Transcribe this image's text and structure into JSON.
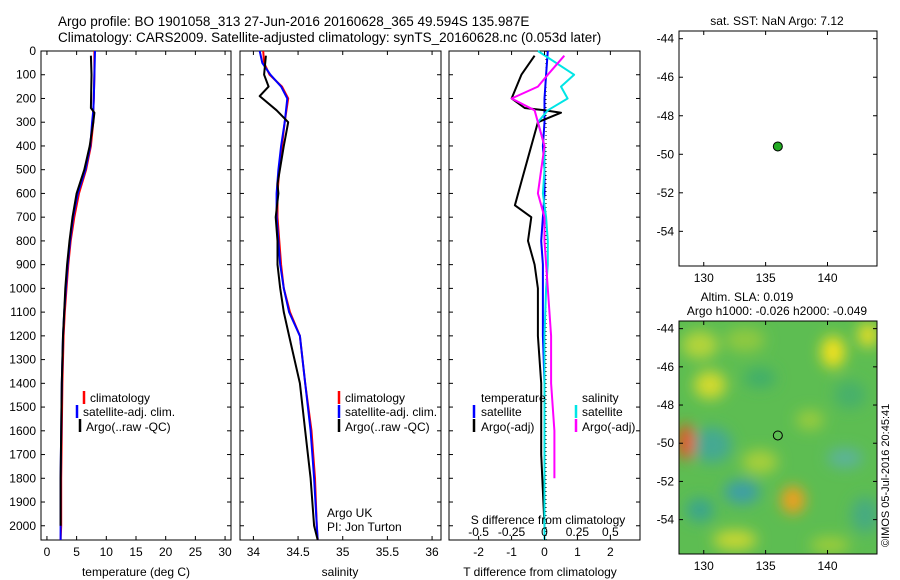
{
  "header": {
    "line1": "Argo profile: BO 1901058_313 27-Jun-2016 20160628_365 49.594S 135.987E",
    "line2": "Climatology: CARS2009. Satellite-adjusted climatology: synTS_20160628.nc (0.053d later)"
  },
  "credit": "©IMOS 05-Jul-2016 20:45:41",
  "colors": {
    "clim": "#ff0000",
    "sat": "#0000ff",
    "argo": "#000000",
    "sat_s": "#00e5e5",
    "argo_s": "#ff00ff",
    "float": "#22aa22"
  },
  "chart_data": [
    {
      "id": "temperature",
      "type": "line",
      "xlabel": "temperature (deg C)",
      "xlim": [
        -1,
        31
      ],
      "xticks": [
        0,
        5,
        10,
        15,
        20,
        25,
        30
      ],
      "ylim": [
        0,
        2060
      ],
      "yticks": [
        0,
        100,
        200,
        300,
        400,
        500,
        600,
        700,
        800,
        900,
        1000,
        1100,
        1200,
        1300,
        1400,
        1500,
        1600,
        1700,
        1800,
        1900,
        2000
      ],
      "yreversed": true,
      "legend": [
        "climatology",
        "satellite-adj. clim.",
        "Argo(..raw -QC)"
      ],
      "series": [
        {
          "name": "climatology",
          "color": "#ff0000",
          "x": [
            8.0,
            8.0,
            7.9,
            7.8,
            7.8,
            7.4,
            6.6,
            5.4,
            4.6,
            4.0,
            3.6,
            3.3,
            3.0,
            2.8,
            2.6,
            2.5,
            2.4,
            2.4,
            2.3
          ],
          "y": [
            0,
            100,
            200,
            250,
            300,
            400,
            500,
            600,
            700,
            800,
            900,
            1000,
            1100,
            1200,
            1400,
            1600,
            1800,
            2000,
            2060
          ]
        },
        {
          "name": "satellite-adj. clim.",
          "color": "#0000ff",
          "x": [
            8.1,
            8.0,
            7.9,
            7.8,
            7.6,
            7.3,
            6.5,
            5.2,
            4.4,
            3.9,
            3.5,
            3.2,
            2.9,
            2.7,
            2.5,
            2.4,
            2.3,
            2.3,
            2.3
          ],
          "y": [
            0,
            100,
            200,
            250,
            300,
            400,
            500,
            600,
            700,
            800,
            900,
            1000,
            1100,
            1200,
            1400,
            1600,
            1800,
            2000,
            2060
          ]
        },
        {
          "name": "Argo(..raw -QC)",
          "color": "#000000",
          "x": [
            7.4,
            7.5,
            7.4,
            8.0,
            7.8,
            7.2,
            6.3,
            5.0,
            4.3,
            3.8,
            3.4,
            3.1,
            2.9,
            2.7,
            2.5,
            2.4,
            2.3,
            2.3
          ],
          "y": [
            20,
            100,
            240,
            260,
            300,
            400,
            500,
            600,
            700,
            800,
            900,
            1000,
            1100,
            1200,
            1400,
            1600,
            1800,
            2000
          ]
        }
      ]
    },
    {
      "id": "salinity",
      "type": "line",
      "xlabel": "salinity",
      "xlim": [
        33.85,
        36.1
      ],
      "xticks": [
        34,
        34.5,
        35,
        35.5,
        36
      ],
      "ylim": [
        0,
        2060
      ],
      "yreversed": true,
      "legend": [
        "climatology",
        "satellite-adj. clim.",
        "Argo(..raw -QC)"
      ],
      "annotation": [
        "Argo UK",
        "PI: Jon Turton"
      ],
      "series": [
        {
          "name": "climatology",
          "color": "#ff0000",
          "x": [
            34.11,
            34.12,
            34.18,
            34.32,
            34.39,
            34.35,
            34.32,
            34.29,
            34.27,
            34.27,
            34.29,
            34.31,
            34.34,
            34.41,
            34.52,
            34.58,
            34.65,
            34.69,
            34.71,
            34.72
          ],
          "y": [
            0,
            50,
            100,
            150,
            200,
            300,
            400,
            500,
            600,
            700,
            800,
            900,
            1000,
            1100,
            1200,
            1400,
            1600,
            1800,
            2000,
            2060
          ]
        },
        {
          "name": "satellite-adj. clim.",
          "color": "#0000ff",
          "x": [
            34.07,
            34.1,
            34.19,
            34.31,
            34.38,
            34.35,
            34.31,
            34.28,
            34.26,
            34.26,
            34.28,
            34.3,
            34.34,
            34.4,
            34.52,
            34.58,
            34.64,
            34.68,
            34.71,
            34.72
          ],
          "y": [
            0,
            50,
            100,
            150,
            200,
            300,
            400,
            500,
            600,
            700,
            800,
            900,
            1000,
            1100,
            1200,
            1400,
            1600,
            1800,
            2000,
            2060
          ]
        },
        {
          "name": "Argo(..raw -QC)",
          "color": "#000000",
          "x": [
            34.14,
            34.12,
            34.17,
            34.07,
            34.26,
            34.39,
            34.34,
            34.27,
            34.28,
            34.25,
            34.27,
            34.27,
            34.3,
            34.34,
            34.4,
            34.52,
            34.58,
            34.64,
            34.68,
            34.72
          ],
          "y": [
            20,
            100,
            150,
            190,
            250,
            300,
            400,
            560,
            600,
            700,
            800,
            900,
            1000,
            1100,
            1200,
            1400,
            1600,
            1800,
            2000,
            2060
          ]
        }
      ]
    },
    {
      "id": "difference",
      "type": "line",
      "xlabel": "T difference from climatology",
      "xlabel_top": "S difference from climatology",
      "xlim": [
        -2.9,
        2.9
      ],
      "xticks": [
        -2,
        -1,
        0,
        1,
        2
      ],
      "s_ticks": [
        {
          "label": "-0.5",
          "x": -2
        },
        {
          "label": "-0.25",
          "x": -1
        },
        {
          "label": "0",
          "x": 0
        },
        {
          "label": "0.25",
          "x": 1
        },
        {
          "label": "0.5",
          "x": 2
        }
      ],
      "ylim": [
        0,
        2060
      ],
      "yreversed": true,
      "legend": {
        "temperature_title": "temperature",
        "salinity_title": "salinity",
        "items": [
          "satellite",
          "Argo(-adj)",
          "satellite",
          "Argo(-adj)"
        ]
      },
      "series": [
        {
          "name": "satellite",
          "color": "#0000ff",
          "x": [
            0.1,
            0.05,
            0.0,
            0.0,
            0.0,
            -0.05,
            0.0,
            0.0,
            -0.05,
            -0.1,
            -0.05,
            -0.05,
            -0.05,
            -0.05,
            0.0,
            0.0,
            0.0,
            0.0,
            0.0
          ],
          "y": [
            0,
            100,
            200,
            250,
            300,
            400,
            500,
            600,
            700,
            800,
            900,
            1000,
            1100,
            1200,
            1400,
            1600,
            1800,
            2000,
            2060
          ]
        },
        {
          "name": "Argo(-adj)",
          "color": "#000000",
          "x": [
            -0.3,
            -0.7,
            -1.0,
            -0.6,
            0.0,
            0.5,
            -0.2,
            -0.5,
            -0.7,
            -0.9,
            -0.4,
            -0.5,
            -0.3,
            -0.2,
            -0.2,
            -0.1,
            -0.1,
            0.0
          ],
          "y": [
            20,
            100,
            200,
            240,
            250,
            260,
            300,
            450,
            550,
            650,
            700,
            800,
            900,
            1000,
            1200,
            1400,
            1700,
            2000
          ]
        },
        {
          "name": "satellite",
          "color": "#00e5e5",
          "x": [
            -0.2,
            0.9,
            0.5,
            0.7,
            0.1,
            -0.2,
            0.0,
            0.0,
            -0.05,
            0.05,
            0.1,
            0.1,
            0.05,
            0.0,
            0.0,
            0.0,
            0.0,
            0.0
          ],
          "y": [
            0,
            100,
            150,
            200,
            250,
            300,
            400,
            500,
            600,
            700,
            800,
            900,
            1000,
            1200,
            1400,
            1600,
            1800,
            2060
          ]
        },
        {
          "name": "Argo(-adj)",
          "color": "#ff00ff",
          "x": [
            0.6,
            0.1,
            -0.2,
            -1.0,
            -0.3,
            -0.2,
            0.0,
            -0.1,
            -0.2,
            0.0,
            0.0,
            0.1,
            0.2,
            0.2,
            0.3,
            0.3
          ],
          "y": [
            20,
            100,
            150,
            200,
            250,
            300,
            400,
            500,
            600,
            700,
            800,
            1000,
            1200,
            1400,
            1600,
            1800
          ]
        }
      ]
    },
    {
      "id": "sst_map",
      "type": "scatter",
      "title": "sat. SST: NaN Argo: 7.12",
      "xlim": [
        128,
        144
      ],
      "ylim": [
        -55.8,
        -43.6
      ],
      "xticks": [
        130,
        135,
        140
      ],
      "yticks": [
        -44,
        -46,
        -48,
        -50,
        -52,
        -54
      ],
      "points": [
        {
          "x": 135.987,
          "y": -49.594
        }
      ]
    },
    {
      "id": "sla_map",
      "type": "heatmap",
      "title_line1": "Altim. SLA: 0.019",
      "title_line2": "Argo h1000: -0.026 h2000: -0.049",
      "xlim": [
        128,
        144
      ],
      "ylim": [
        -55.8,
        -43.6
      ],
      "xticks": [
        130,
        135,
        140
      ],
      "yticks": [
        -44,
        -46,
        -48,
        -50,
        -52,
        -54
      ],
      "points": [
        {
          "x": 135.987,
          "y": -49.594
        }
      ]
    }
  ]
}
